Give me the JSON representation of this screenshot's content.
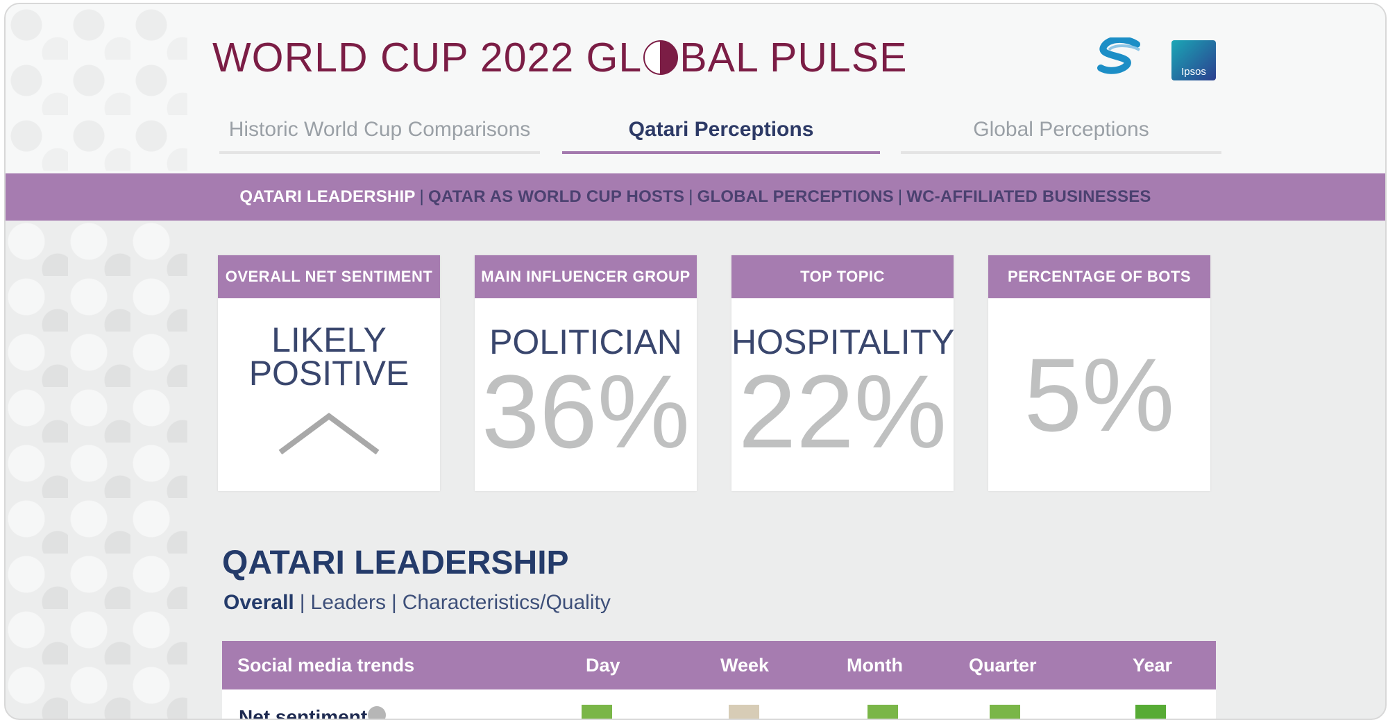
{
  "header": {
    "title_left": "WORLD CUP 2022 GL",
    "title_right": "BAL PULSE",
    "tabs": [
      {
        "label": "Historic World Cup Comparisons"
      },
      {
        "label": "Qatari Perceptions"
      },
      {
        "label": "Global Perceptions"
      }
    ]
  },
  "subnav": {
    "items": [
      "QATARI LEADERSHIP",
      "QATAR AS WORLD CUP HOSTS",
      "GLOBAL PERCEPTIONS",
      "WC-AFFILIATED BUSINESSES"
    ]
  },
  "cards": [
    {
      "title": "OVERALL NET SENTIMENT",
      "line1": "LIKELY",
      "line2": "POSITIVE"
    },
    {
      "title": "MAIN INFLUENCER GROUP",
      "label": "POLITICIAN",
      "value": "36%"
    },
    {
      "title": "TOP TOPIC",
      "label": "HOSPITALITY",
      "value": "22%"
    },
    {
      "title": "PERCENTAGE OF BOTS",
      "value": "5%"
    }
  ],
  "section": {
    "title": "QATARI LEADERSHIP",
    "links": [
      "Overall",
      "Leaders",
      "Characteristics/Quality"
    ]
  },
  "table": {
    "headers": [
      "Social media trends",
      "Day",
      "Week",
      "Month",
      "Quarter",
      "Year"
    ],
    "row_label": "Net sentiment",
    "square_colors": [
      "#7ab648",
      "#d7ccb6",
      "#7ab648",
      "#7ab648",
      "#57ab35"
    ]
  },
  "colors": {
    "brand": "#7b1d45",
    "accent": "#a67cb0"
  }
}
